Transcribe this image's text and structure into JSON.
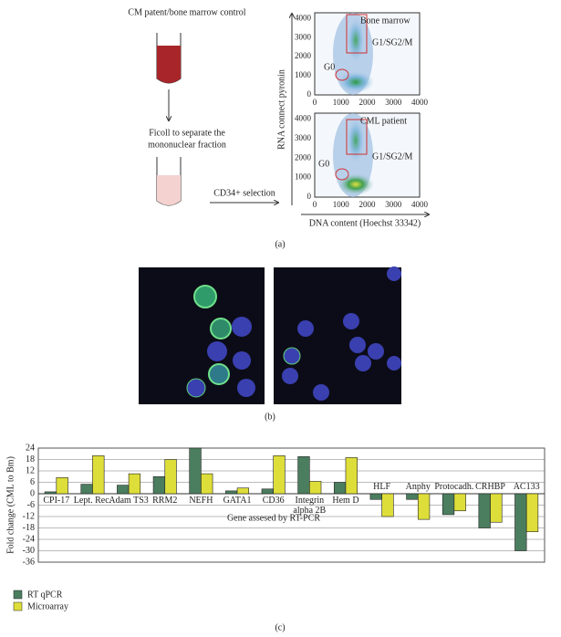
{
  "panel_a": {
    "top_label": "CM patent/bone marrow control",
    "step_lines": [
      "Ficoll to separate the",
      "mononuclear fraction"
    ],
    "selection_label": "CD34+ selection",
    "plots": [
      {
        "label": "Bone marrow",
        "gate_label": "G1/SG2/M",
        "g0_label": "G0"
      },
      {
        "label": "CML patient",
        "gate_label": "G1/SG2/M",
        "g0_label": "G0"
      }
    ],
    "xlim": [
      0,
      4000
    ],
    "ylim": [
      0,
      4300
    ],
    "ticks": [
      0,
      1000,
      2000,
      3000,
      4000
    ],
    "y_label": "RNA connect pyronin",
    "x_label": "DNA content (Hoechst 33342)",
    "caption": "(a)"
  },
  "panel_b": {
    "caption": "(b)"
  },
  "chart_data": {
    "type": "bar",
    "categories": [
      "CPI-17",
      "Lept. Rec.",
      "Adam TS3",
      "RRM2",
      "NEFH",
      "GATA1",
      "CD36",
      "Integrin alpha 2B",
      "Hem D",
      "HLF",
      "Anphy",
      "Protocadh.",
      "CRHBP",
      "AC133"
    ],
    "series": [
      {
        "name": "RT qPCR",
        "color": "#4b7d5f",
        "values": [
          1,
          5,
          4.5,
          9,
          24,
          1.5,
          2.5,
          19.5,
          6,
          -3,
          -3,
          -11,
          -18,
          -30
        ]
      },
      {
        "name": "Microarray",
        "color": "#dede3a",
        "values": [
          8.5,
          20,
          10.5,
          18,
          10.5,
          3,
          20,
          6.5,
          19,
          -12,
          -13.5,
          -9,
          -15,
          -20
        ]
      }
    ],
    "ylim": [
      -36,
      24
    ],
    "yticks": [
      -36,
      -30,
      -24,
      -18,
      -12,
      -6,
      0,
      6,
      12,
      18,
      24
    ],
    "y_label": "Fold change (CML to Bm)",
    "annotation": "Gene assesed by RT-PCR",
    "grid": true,
    "caption": "(c)"
  }
}
